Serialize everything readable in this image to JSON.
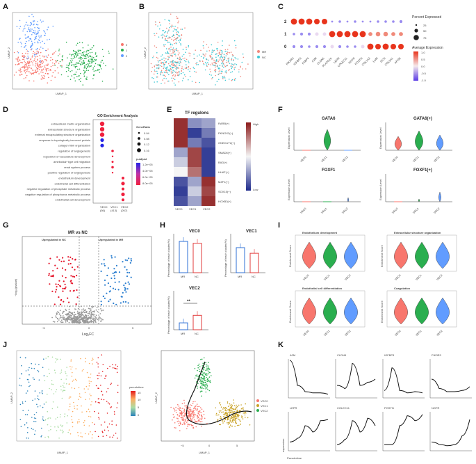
{
  "panels": [
    "A",
    "B",
    "C",
    "D",
    "E",
    "F",
    "G",
    "H",
    "I",
    "J",
    "K"
  ],
  "colors": {
    "vec0": "#f8766d",
    "vec1": "#2aae4f",
    "vec2": "#619cff",
    "mr": "#f08a7e",
    "nc": "#3ec8d4",
    "red": "#e5172c",
    "blue": "#2c7fd0"
  },
  "umap": {
    "xlabel": "UMAP_1",
    "ylabel": "UMAP_2"
  },
  "a": {
    "legend": [
      "0",
      "1",
      "2"
    ]
  },
  "b": {
    "legend": [
      "MR",
      "NC"
    ]
  },
  "c": {
    "genes": [
      "PIK3R3",
      "IGFBP3",
      "FABP4",
      "A2M",
      "CLDN5",
      "PLA2G2A",
      "LEPR",
      "COLEC11",
      "NGFR",
      "POSTN",
      "COL1A2",
      "LUM",
      "DCN",
      "COL3A1",
      "APOE"
    ],
    "clusters": [
      "2",
      "1",
      "0"
    ],
    "pct_title": "Percent Expressed",
    "pct_values": [
      "25",
      "50",
      "75"
    ],
    "avg_title": "Average Expression",
    "avg_values": [
      "1.0",
      "0.5",
      "0.0",
      "-0.5",
      "-1.0"
    ]
  },
  "d": {
    "title": "GO Enrichment Analysis",
    "terms": [
      "extracellular matrix organization",
      "extracellular structure organization",
      "external encapsulating structure organization",
      "response to topologically incorrect protein",
      "collagen fibril organization",
      "regulation of angiogenesis",
      "regulation of vasculature development",
      "ameboidal−type cell migration",
      "renal system process",
      "positive regulation of angiogenesis",
      "endothelium development",
      "endothelial cell differentiation",
      "negative regulation of phosphate metabolic process",
      "negative regulation of phosphorus metabolic process",
      "endothelial cell development"
    ],
    "groups": [
      "VEC0\n(56)",
      "VEC1\n(413)",
      "VEC2\n(267)"
    ],
    "group_names": [
      "VEC0",
      "VEC1",
      "VEC2"
    ],
    "group_counts": [
      "(56)",
      "(413)",
      "(267)"
    ],
    "gr_title": "GeneRatio",
    "gr_values": [
      "0.04",
      "0.08",
      "0.12",
      "0.16"
    ],
    "padj_title": "p.adjust",
    "padj_values": [
      "1.2e−05",
      "4.0e−05",
      "6.0e−05",
      "8.0e−05"
    ]
  },
  "e": {
    "title": "TF regulons",
    "rows": [
      "RARB(+)",
      "PKNOX2(+)",
      "ONECUT2(+)",
      "SMAD6(+)",
      "BAD(+)",
      "HHAT(+)",
      "MZF1(+)",
      "SOX15(+)",
      "HOXB3(+)"
    ],
    "cols": [
      "VEC0",
      "VEC1",
      "VEC2"
    ],
    "high": "High",
    "low": "Low",
    "matrix": [
      [
        0.95,
        0.25,
        0.3
      ],
      [
        0.95,
        0.05,
        0.2
      ],
      [
        0.95,
        0.2,
        0.1
      ],
      [
        0.3,
        0.9,
        0.05
      ],
      [
        0.4,
        0.9,
        0.05
      ],
      [
        0.5,
        0.8,
        0.05
      ],
      [
        0.1,
        0.3,
        0.95
      ],
      [
        0.05,
        0.4,
        0.9
      ],
      [
        0.1,
        0.3,
        0.95
      ]
    ]
  },
  "f": {
    "titles": [
      "GATA6",
      "GATA6(+)",
      "FOXF1",
      "FOXF1(+)"
    ],
    "ylabel": "Expression Level",
    "xticks": [
      "VEC0",
      "VEC1",
      "VEC2"
    ]
  },
  "g": {
    "title": "MR vs NC",
    "left": "Upregulated in NC",
    "right": "Upregulated in MR",
    "xlabel": "Log₂FC",
    "ylabel": "−log₁₀(pvalue)",
    "xticks": [
      "−5",
      "0",
      "5"
    ]
  },
  "h": {
    "titles": [
      "VEC0",
      "VEC1",
      "VEC2"
    ],
    "ylabel": "Percentage of each cluster(%)",
    "groups": [
      "MR",
      "NC"
    ],
    "sig": "**",
    "vec0": [
      50,
      47
    ],
    "vec1": [
      40,
      31
    ],
    "vec2": [
      11,
      23
    ]
  },
  "i": {
    "titles": [
      "Endothelium development",
      "Extracellular structure organization",
      "Endothelial cell differentiation",
      "Coagulation"
    ],
    "ylabel": "Enrichment Score",
    "xticks": [
      "VEC0",
      "VEC1",
      "VEC2"
    ]
  },
  "j": {
    "legend_title": "pseudotime",
    "legend_values": [
      "15",
      "10",
      "5",
      "0"
    ],
    "traj_legend": [
      "VEC0",
      "VEC1",
      "VEC2"
    ],
    "xticks": [
      "−5",
      "0",
      "5"
    ]
  },
  "k": {
    "genes": [
      "A2M",
      "CLDN5",
      "IGFBP3",
      "PIK3R3",
      "LEPR",
      "COLEC11",
      "POSTN",
      "NGFR"
    ],
    "xlabel": "Pseudotime",
    "ylabel": "expression"
  }
}
